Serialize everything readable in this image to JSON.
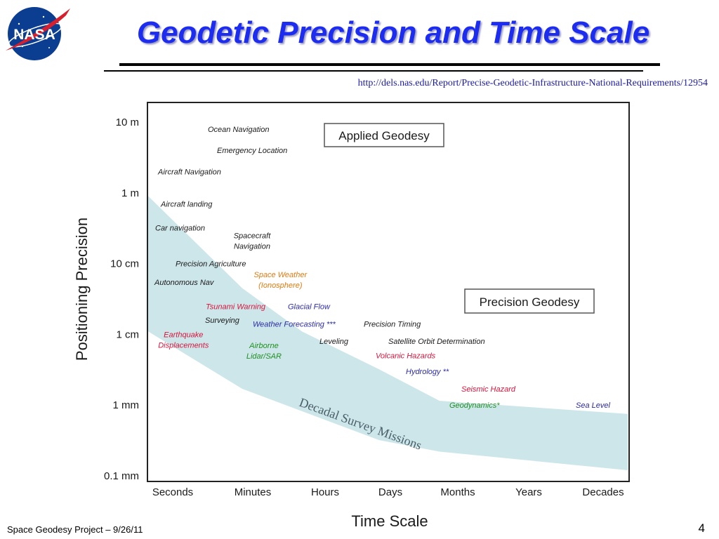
{
  "slide": {
    "title": "Geodetic Precision and Time Scale",
    "source_url": "http://dels.nas.edu/Report/Precise-Geodetic-Infrastructure-National-Requirements/12954",
    "footer": "Space Geodesy Project – 9/26/11",
    "page_number": "4",
    "logo_text": "NASA"
  },
  "colors": {
    "title": "#1c2cf0",
    "band": "#cde6ea",
    "black_label": "#1a1a1a",
    "red_label": "#d8143a",
    "blue_label": "#2a2aa8",
    "orange_label": "#e07a10",
    "green_label": "#1f8f1f",
    "band_label": "#4a5f6a"
  },
  "chart_data": {
    "type": "area",
    "xlabel": "Time Scale",
    "ylabel": "Positioning Precision",
    "x_categories": [
      "Seconds",
      "Minutes",
      "Hours",
      "Days",
      "Months",
      "Years",
      "Decades"
    ],
    "y_scale": "log",
    "y_unit": "m",
    "y_ticks": [
      {
        "label": "10 m",
        "value": 10
      },
      {
        "label": "1 m",
        "value": 1
      },
      {
        "label": "10 cm",
        "value": 0.1
      },
      {
        "label": "1 cm",
        "value": 0.01
      },
      {
        "label": "1 mm",
        "value": 0.001
      },
      {
        "label": "0.1 mm",
        "value": 0.0001
      }
    ],
    "ylim": [
      0.0001,
      10
    ],
    "band": {
      "label": "Decadal Survey Missions",
      "upper": [
        {
          "x": "Seconds",
          "y": 0.9
        },
        {
          "x": "Minutes",
          "y": 0.045
        },
        {
          "x": "Hours",
          "y": 0.011
        },
        {
          "x": "Days",
          "y": 0.0032
        },
        {
          "x": "Months",
          "y": 0.00115
        },
        {
          "x": "Decades",
          "y": 0.00075
        }
      ],
      "lower": [
        {
          "x": "Seconds",
          "y": 0.011
        },
        {
          "x": "Minutes",
          "y": 0.0017
        },
        {
          "x": "Days",
          "y": 0.00032
        },
        {
          "x": "Months",
          "y": 0.00022
        },
        {
          "x": "Decades",
          "y": 0.00012
        }
      ]
    },
    "boxes": [
      "Applied Geodesy",
      "Precision Geodesy"
    ],
    "labels": [
      {
        "text": [
          "Ocean Navigation"
        ],
        "x": "Seconds+",
        "y": 8,
        "color": "black"
      },
      {
        "text": [
          "Emergency Location"
        ],
        "x": "Minutes",
        "y": 4,
        "color": "black"
      },
      {
        "text": [
          "Aircraft Navigation"
        ],
        "x": "Seconds",
        "y": 2,
        "color": "black"
      },
      {
        "text": [
          "Aircraft landing"
        ],
        "x": "Seconds",
        "y": 0.7,
        "color": "black"
      },
      {
        "text": [
          "Car navigation"
        ],
        "x": "Seconds",
        "y": 0.32,
        "color": "black"
      },
      {
        "text": [
          "Spacecraft",
          "Navigation"
        ],
        "x": "Minutes",
        "y": 0.25,
        "color": "black"
      },
      {
        "text": [
          "Precision Agriculture"
        ],
        "x": "Seconds+",
        "y": 0.1,
        "color": "black"
      },
      {
        "text": [
          "Space Weather",
          "(Ionosphere)"
        ],
        "x": "Minutes+",
        "y": 0.07,
        "color": "orange"
      },
      {
        "text": [
          "Autonomous Nav"
        ],
        "x": "Seconds",
        "y": 0.055,
        "color": "black"
      },
      {
        "text": [
          "Tsunami Warning"
        ],
        "x": "Minutes",
        "y": 0.025,
        "color": "red"
      },
      {
        "text": [
          "Glacial Flow"
        ],
        "x": "Hours",
        "y": 0.025,
        "color": "blue"
      },
      {
        "text": [
          "Surveying"
        ],
        "x": "Minutes",
        "y": 0.016,
        "color": "black"
      },
      {
        "text": [
          "Weather Forecasting ***"
        ],
        "x": "Minutes+",
        "y": 0.014,
        "color": "blue"
      },
      {
        "text": [
          "Precision Timing"
        ],
        "x": "Days",
        "y": 0.014,
        "color": "black"
      },
      {
        "text": [
          "Earthquake",
          "Displacements"
        ],
        "x": "Seconds",
        "y": 0.01,
        "color": "red"
      },
      {
        "text": [
          "Airborne",
          "Lidar/SAR"
        ],
        "x": "Minutes",
        "y": 0.007,
        "color": "green"
      },
      {
        "text": [
          "Leveling"
        ],
        "x": "Hours",
        "y": 0.008,
        "color": "black"
      },
      {
        "text": [
          "Satellite Orbit Determination"
        ],
        "x": "Days+",
        "y": 0.008,
        "color": "black"
      },
      {
        "text": [
          "Volcanic Hazards"
        ],
        "x": "Days",
        "y": 0.005,
        "color": "red"
      },
      {
        "text": [
          "Hydrology **"
        ],
        "x": "Days+",
        "y": 0.003,
        "color": "blue"
      },
      {
        "text": [
          "Seismic Hazard"
        ],
        "x": "Months",
        "y": 0.0017,
        "color": "red"
      },
      {
        "text": [
          "Geodynamics*"
        ],
        "x": "Months",
        "y": 0.001,
        "color": "green"
      },
      {
        "text": [
          "Sea Level"
        ],
        "x": "Decades",
        "y": 0.001,
        "color": "blue"
      }
    ]
  }
}
